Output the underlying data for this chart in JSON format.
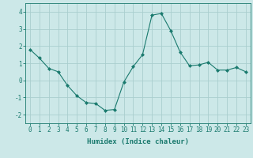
{
  "x": [
    0,
    1,
    2,
    3,
    4,
    5,
    6,
    7,
    8,
    9,
    10,
    11,
    12,
    13,
    14,
    15,
    16,
    17,
    18,
    19,
    20,
    21,
    22,
    23
  ],
  "y": [
    1.8,
    1.3,
    0.7,
    0.5,
    -0.3,
    -0.9,
    -1.3,
    -1.35,
    -1.75,
    -1.7,
    -0.1,
    0.8,
    1.5,
    3.8,
    3.9,
    2.9,
    1.65,
    0.85,
    0.9,
    1.05,
    0.6,
    0.6,
    0.75,
    0.5
  ],
  "line_color": "#1a7a6e",
  "marker": "D",
  "marker_size": 2.0,
  "bg_color": "#cce8e8",
  "grid_color": "#aacece",
  "axis_color": "#1a7a6e",
  "xlabel": "Humidex (Indice chaleur)",
  "ylim": [
    -2.5,
    4.5
  ],
  "xlim": [
    -0.5,
    23.5
  ],
  "yticks": [
    -2,
    -1,
    0,
    1,
    2,
    3,
    4
  ],
  "xticks": [
    0,
    1,
    2,
    3,
    4,
    5,
    6,
    7,
    8,
    9,
    10,
    11,
    12,
    13,
    14,
    15,
    16,
    17,
    18,
    19,
    20,
    21,
    22,
    23
  ],
  "label_fontsize": 6.5,
  "tick_fontsize": 5.5
}
